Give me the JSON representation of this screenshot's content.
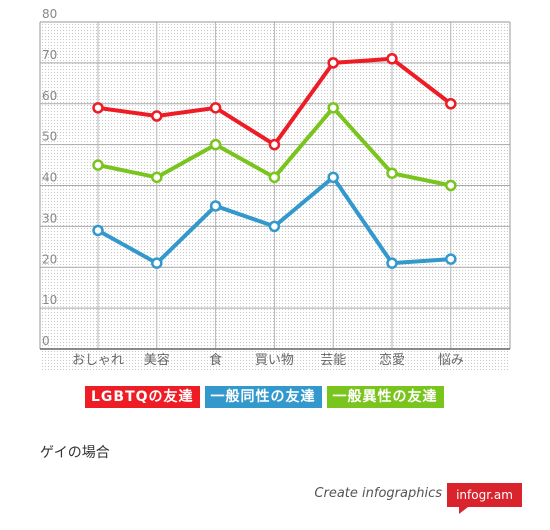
{
  "chart_data": {
    "type": "line",
    "categories": [
      "おしゃれ",
      "美容",
      "食",
      "買い物",
      "芸能",
      "恋愛",
      "悩み"
    ],
    "y_ticks": [
      0,
      10,
      20,
      30,
      40,
      50,
      60,
      70,
      80
    ],
    "ylim": [
      0,
      80
    ],
    "grid": true,
    "legend_position": "bottom",
    "series": [
      {
        "name": "LGBTQの友達",
        "color": "#ee1c25",
        "values": [
          59,
          57,
          59,
          50,
          70,
          71,
          60
        ]
      },
      {
        "name": "一般同性の友達",
        "color": "#3399cc",
        "values": [
          29,
          21,
          35,
          30,
          42,
          21,
          22
        ]
      },
      {
        "name": "一般異性の友達",
        "color": "#7ac41e",
        "values": [
          45,
          42,
          50,
          42,
          59,
          43,
          40
        ]
      }
    ]
  },
  "caption": "ゲイの場合",
  "footer": {
    "text": "Create infographics",
    "badge": "infogr.am"
  }
}
